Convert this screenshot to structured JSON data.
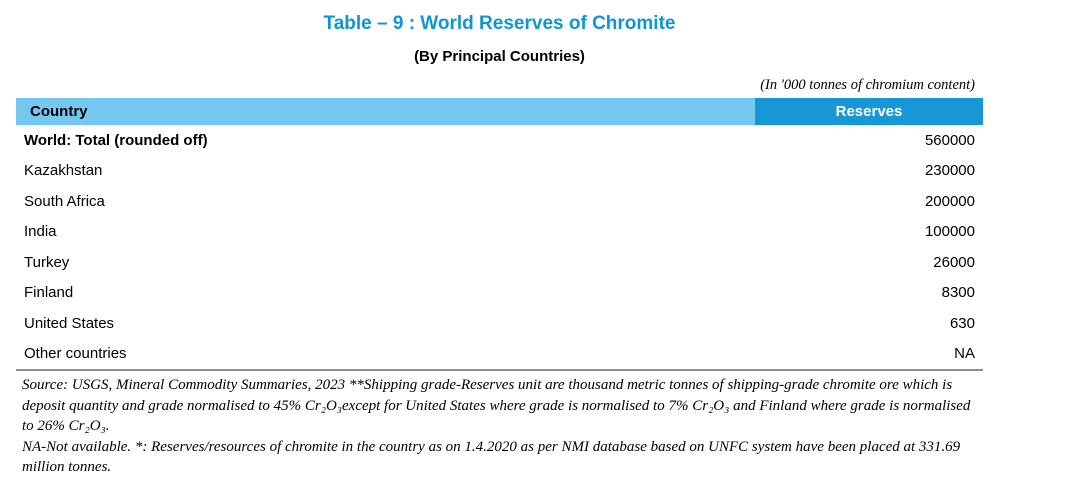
{
  "header": {
    "title": "Table – 9 : World Reserves of Chromite",
    "subtitle": "(By Principal Countries)",
    "unit_note": "(In '000 tonnes of chromium content)"
  },
  "table": {
    "columns": [
      "Country",
      "Reserves"
    ],
    "rows": [
      {
        "country": "World: Total (rounded off)",
        "reserves": "560000"
      },
      {
        "country": "Kazakhstan",
        "reserves": "230000"
      },
      {
        "country": "South Africa",
        "reserves": "200000"
      },
      {
        "country": "India",
        "reserves": "100000"
      },
      {
        "country": "Turkey",
        "reserves": "26000"
      },
      {
        "country": "Finland",
        "reserves": "8300"
      },
      {
        "country": "United States",
        "reserves": "630"
      },
      {
        "country": "Other countries",
        "reserves": "NA"
      }
    ]
  },
  "footnotes": {
    "source_note": "Source: USGS, Mineral Commodity Summaries, 2023 **Shipping grade-Reserves unit are thousand metric tonnes of shipping-grade chromite ore which is deposit quantity and grade normalised to 45% Cr₂O₃except for United States where grade is normalised to 7% Cr₂O₃ and Finland where grade is normalised to 26% Cr₂O₃.",
    "na_note": "NA-Not available. *: Reserves/resources of chromite in the country as on 1.4.2020 as per NMI database based on UNFC system have been placed at 331.69 million tonnes."
  },
  "colors": {
    "title_blue": "#1095d2",
    "header_light_blue": "#74c8f0",
    "header_dark_blue": "#1797d5",
    "divider_gray": "#8f8f8f"
  },
  "chart_data": {
    "type": "table",
    "title": "Table – 9 : World Reserves of Chromite (By Principal Countries)",
    "unit": "'000 tonnes of chromium content",
    "columns": [
      "Country",
      "Reserves"
    ],
    "rows": [
      [
        "World: Total (rounded off)",
        560000
      ],
      [
        "Kazakhstan",
        230000
      ],
      [
        "South Africa",
        200000
      ],
      [
        "India",
        100000
      ],
      [
        "Turkey",
        26000
      ],
      [
        "Finland",
        8300
      ],
      [
        "United States",
        630
      ],
      [
        "Other countries",
        "NA"
      ]
    ]
  }
}
